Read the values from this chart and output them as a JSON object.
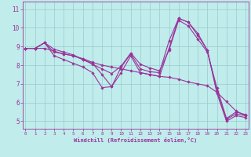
{
  "title": "",
  "xlabel": "Windchill (Refroidissement éolien,°C)",
  "bg_color": "#c0ecec",
  "line_color": "#993399",
  "grid_color": "#99cccc",
  "x_ticks": [
    0,
    1,
    2,
    3,
    4,
    5,
    6,
    7,
    8,
    9,
    10,
    11,
    12,
    13,
    14,
    15,
    16,
    17,
    18,
    19,
    20,
    21,
    22,
    23
  ],
  "y_ticks": [
    5,
    6,
    7,
    8,
    9,
    10,
    11
  ],
  "xlim": [
    -0.3,
    23.3
  ],
  "ylim": [
    4.6,
    11.4
  ],
  "series": [
    [
      8.9,
      8.9,
      9.2,
      8.7,
      8.6,
      8.5,
      8.3,
      8.1,
      7.5,
      6.85,
      7.9,
      8.6,
      7.8,
      7.65,
      7.6,
      9.3,
      10.5,
      10.3,
      9.7,
      8.8,
      6.6,
      5.1,
      5.4,
      5.3
    ],
    [
      8.9,
      8.9,
      8.9,
      8.75,
      8.6,
      8.5,
      8.35,
      8.15,
      8.0,
      7.9,
      7.8,
      7.7,
      7.6,
      7.5,
      7.4,
      7.35,
      7.25,
      7.1,
      7.0,
      6.9,
      6.55,
      6.05,
      5.55,
      5.3
    ],
    [
      8.9,
      8.9,
      9.2,
      8.85,
      8.7,
      8.55,
      8.3,
      8.05,
      7.8,
      7.55,
      7.95,
      8.65,
      8.05,
      7.85,
      7.7,
      8.8,
      10.4,
      10.1,
      9.4,
      8.7,
      6.8,
      5.15,
      5.5,
      5.35
    ],
    [
      8.9,
      8.9,
      9.2,
      8.5,
      8.3,
      8.1,
      7.9,
      7.6,
      6.8,
      6.85,
      7.6,
      8.5,
      7.6,
      7.5,
      7.4,
      8.9,
      10.5,
      10.3,
      9.6,
      8.8,
      6.5,
      5.0,
      5.3,
      5.2
    ]
  ]
}
